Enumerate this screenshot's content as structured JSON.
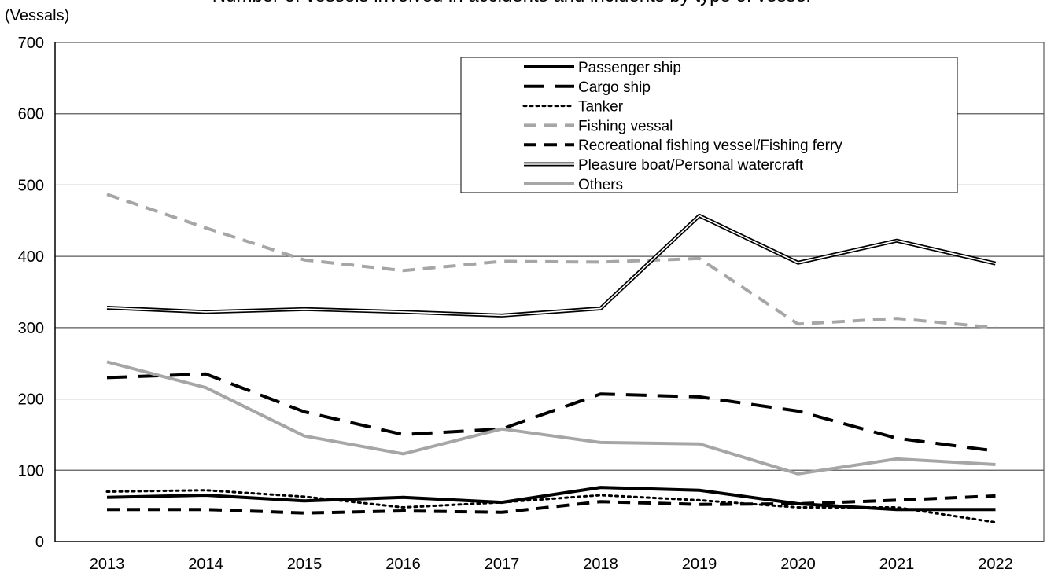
{
  "chart_data": {
    "type": "line",
    "title": "Number of vessels involved in accidents and incidents by type of vessel",
    "ylabel": "(Vessals)",
    "xlabel": "",
    "ylim": [
      0,
      700
    ],
    "yticks": [
      0,
      100,
      200,
      300,
      400,
      500,
      600,
      700
    ],
    "categories": [
      "2013",
      "2014",
      "2015",
      "2016",
      "2017",
      "2018",
      "2019",
      "2020",
      "2021",
      "2022"
    ],
    "grid": "horizontal",
    "legend_position": "top-right",
    "series": [
      {
        "name": "Passenger ship",
        "color": "#000000",
        "style": "solid",
        "values": [
          62,
          65,
          57,
          62,
          55,
          76,
          72,
          53,
          45,
          45
        ]
      },
      {
        "name": "Cargo ship",
        "color": "#000000",
        "style": "long-dash",
        "values": [
          230,
          235,
          182,
          150,
          158,
          207,
          203,
          183,
          145,
          127
        ]
      },
      {
        "name": "Tanker",
        "color": "#000000",
        "style": "dotted",
        "values": [
          70,
          72,
          63,
          48,
          55,
          65,
          58,
          48,
          48,
          27
        ]
      },
      {
        "name": "Fishing vessal",
        "color": "#a6a6a6",
        "style": "dash",
        "values": [
          487,
          440,
          395,
          380,
          393,
          392,
          397,
          305,
          313,
          300
        ]
      },
      {
        "name": "Recreational fishing vessel/Fishing ferry",
        "color": "#000000",
        "style": "dash",
        "values": [
          45,
          45,
          40,
          43,
          41,
          56,
          52,
          53,
          58,
          64
        ]
      },
      {
        "name": "Pleasure boat/Personal watercraft",
        "color": "#000000",
        "style": "double",
        "values": [
          328,
          322,
          326,
          322,
          317,
          327,
          457,
          391,
          422,
          390
        ]
      },
      {
        "name": "Others",
        "color": "#a6a6a6",
        "style": "solid",
        "values": [
          252,
          216,
          148,
          123,
          158,
          139,
          137,
          95,
          116,
          108
        ]
      }
    ]
  }
}
